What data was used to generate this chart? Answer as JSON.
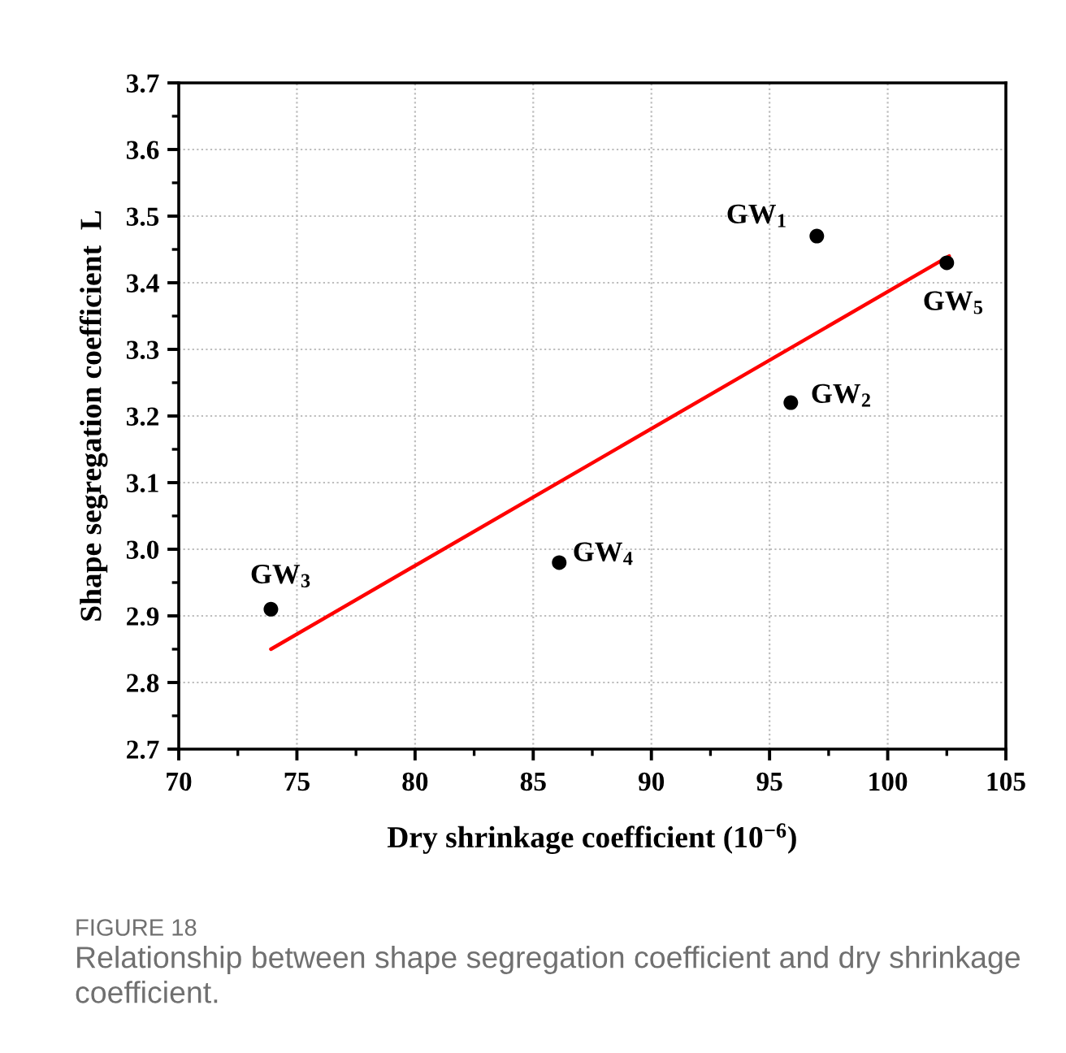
{
  "chart_data": {
    "type": "scatter",
    "xlabel": "Dry shrinkage coefficient (10$^{−6}$)",
    "ylabel": "Shape segregation coefficient  L",
    "xlim": [
      70,
      105
    ],
    "xticks": [
      70,
      75,
      80,
      85,
      90,
      95,
      100,
      105
    ],
    "ylim": [
      2.7,
      3.7
    ],
    "yticks": [
      2.7,
      2.8,
      2.9,
      {
        "value": 3.0,
        "label": "3.0"
      },
      3.1,
      3.2,
      3.3,
      3.4,
      3.5,
      3.6,
      3.7
    ],
    "grid": true,
    "marker": "circle",
    "series": [
      {
        "color": "#000000",
        "x": [
          97.0,
          95.9,
          73.9,
          86.1,
          102.5
        ],
        "values": [
          3.47,
          3.22,
          2.91,
          2.98,
          3.43
        ]
      },
      {
        "type": "line",
        "color": "#ff0000",
        "marker": "none",
        "line_style": "solid",
        "x": [
          73.9,
          102.6
        ],
        "values": [
          2.85,
          3.44
        ]
      }
    ],
    "annotations": [
      {
        "text": "GW$_{1}$",
        "x": 97.0,
        "y": 3.47
      },
      {
        "text": "GW$_{2}$",
        "x": 95.9,
        "y": 3.22
      },
      {
        "text": "GW$_{3}$",
        "x": 73.9,
        "y": 2.91
      },
      {
        "text": "GW$_{4}$",
        "x": 86.1,
        "y": 2.98
      },
      {
        "text": "GW$_{5}$",
        "x": 102.5,
        "y": 3.43
      },
      "FIGURE 18",
      "Relationship between shape segregation coefficient and dry shrinkage coefficient."
    ]
  }
}
